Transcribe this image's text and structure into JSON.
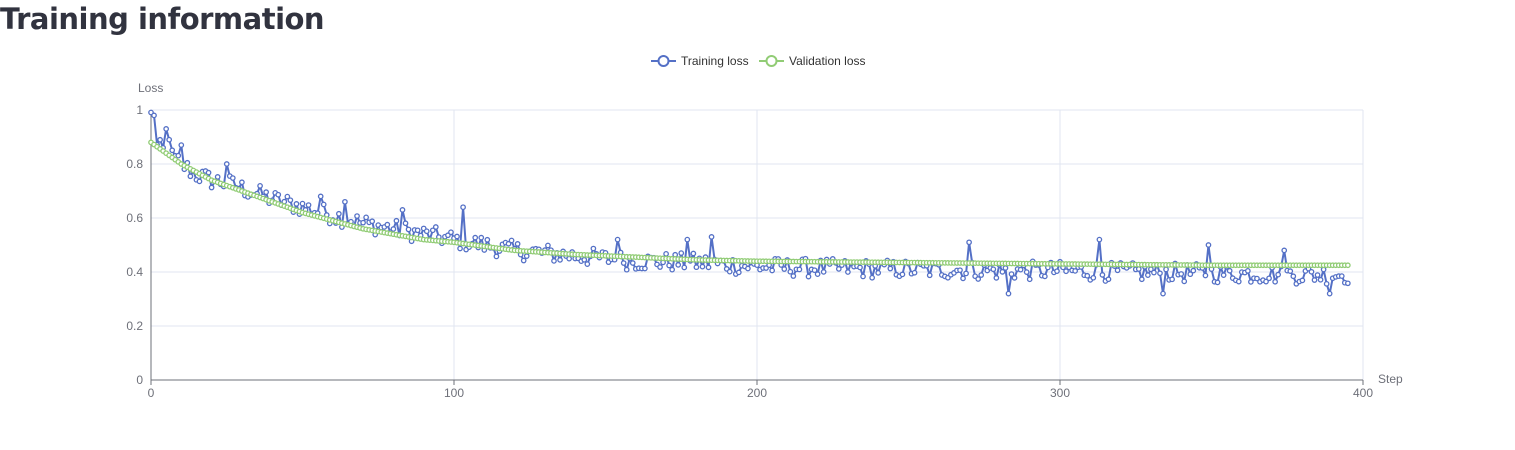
{
  "page": {
    "title": "Training information"
  },
  "chart_data": {
    "type": "line",
    "xlabel": "Step",
    "ylabel": "Loss",
    "xlim": [
      0,
      400
    ],
    "ylim": [
      0,
      1
    ],
    "xticks": [
      0,
      100,
      200,
      300,
      400
    ],
    "yticks": [
      0,
      0.2,
      0.4,
      0.6,
      0.8,
      1
    ],
    "grid": true,
    "legend_position": "top-center",
    "x_start": 0,
    "x_end": 395,
    "series": [
      {
        "name": "Training loss",
        "color": "#5470c6",
        "marker": "open-circle",
        "anchors_x": [
          0,
          1,
          5,
          10,
          15,
          20,
          25,
          30,
          40,
          50,
          60,
          70,
          80,
          90,
          100,
          110,
          120,
          130,
          140,
          150,
          160,
          180,
          200,
          220,
          250,
          280,
          300,
          320,
          350,
          380,
          395
        ],
        "anchors_y": [
          0.98,
          0.87,
          0.84,
          0.8,
          0.76,
          0.74,
          0.73,
          0.71,
          0.67,
          0.64,
          0.61,
          0.58,
          0.56,
          0.54,
          0.52,
          0.5,
          0.48,
          0.47,
          0.46,
          0.45,
          0.44,
          0.435,
          0.42,
          0.415,
          0.41,
          0.405,
          0.405,
          0.4,
          0.395,
          0.39,
          0.39
        ],
        "noise_amplitude": 0.035,
        "spikes": [
          [
            1,
            0.98
          ],
          [
            5,
            0.93
          ],
          [
            6,
            0.89
          ],
          [
            10,
            0.87
          ],
          [
            25,
            0.8
          ],
          [
            56,
            0.68
          ],
          [
            64,
            0.66
          ],
          [
            83,
            0.63
          ],
          [
            103,
            0.64
          ],
          [
            154,
            0.52
          ],
          [
            177,
            0.52
          ],
          [
            185,
            0.53
          ],
          [
            270,
            0.51
          ],
          [
            313,
            0.52
          ],
          [
            349,
            0.5
          ],
          [
            374,
            0.48
          ],
          [
            283,
            0.32
          ],
          [
            334,
            0.32
          ],
          [
            389,
            0.32
          ]
        ]
      },
      {
        "name": "Validation loss",
        "color": "#91cc75",
        "marker": "open-circle",
        "anchors_x": [
          0,
          10,
          20,
          30,
          40,
          50,
          60,
          70,
          80,
          90,
          100,
          120,
          140,
          160,
          180,
          200,
          250,
          300,
          350,
          395
        ],
        "anchors_y": [
          0.88,
          0.8,
          0.74,
          0.7,
          0.66,
          0.62,
          0.59,
          0.56,
          0.54,
          0.52,
          0.51,
          0.48,
          0.465,
          0.455,
          0.445,
          0.44,
          0.435,
          0.43,
          0.425,
          0.425
        ]
      }
    ]
  }
}
